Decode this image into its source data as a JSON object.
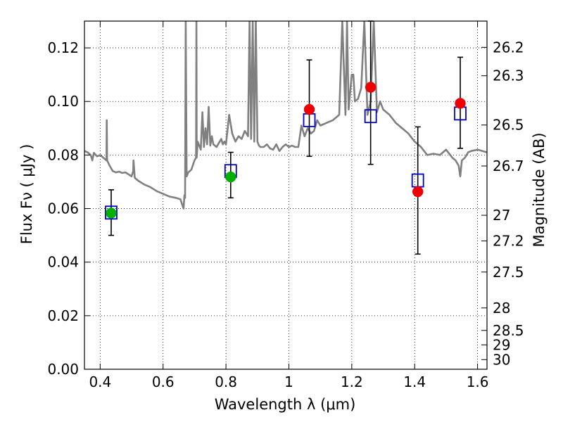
{
  "chart_data": {
    "type": "scatter",
    "title": "",
    "xlabel": "Wavelength  λ (μm)",
    "ylabel": "Flux  Fν  ( μJy )",
    "ylabel_right": "Magnitude (AB)",
    "xlim": [
      0.35,
      1.63
    ],
    "ylim": [
      0.0,
      0.13
    ],
    "grid": true,
    "x_ticks": [
      0.4,
      0.6,
      0.8,
      1.0,
      1.2,
      1.4,
      1.6
    ],
    "x_tick_labels": [
      "0.4",
      "0.6",
      "0.8",
      "1",
      "1.2",
      "1.4",
      "1.6"
    ],
    "y_ticks": [
      0.0,
      0.02,
      0.04,
      0.06,
      0.08,
      0.1,
      0.12
    ],
    "y_tick_labels": [
      "0.00",
      "0.02",
      "0.04",
      "0.06",
      "0.08",
      "0.10",
      "0.12"
    ],
    "right_ticks": [
      {
        "flux": 0.1202,
        "label": "26.2"
      },
      {
        "flux": 0.1096,
        "label": "26.3"
      },
      {
        "flux": 0.0912,
        "label": "26.5"
      },
      {
        "flux": 0.0759,
        "label": "26.7"
      },
      {
        "flux": 0.0575,
        "label": "27"
      },
      {
        "flux": 0.0479,
        "label": "27.2"
      },
      {
        "flux": 0.0363,
        "label": "27.5"
      },
      {
        "flux": 0.0229,
        "label": "28"
      },
      {
        "flux": 0.0145,
        "label": "28.5"
      },
      {
        "flux": 0.0091,
        "label": "29"
      },
      {
        "flux": 0.0036,
        "label": "30"
      }
    ],
    "series": [
      {
        "kind": "line",
        "color": "#808080",
        "x": [
          0.35,
          0.36,
          0.37,
          0.375,
          0.38,
          0.39,
          0.4,
          0.41,
          0.415,
          0.42,
          0.421,
          0.422,
          0.43,
          0.44,
          0.45,
          0.46,
          0.47,
          0.48,
          0.49,
          0.5,
          0.505,
          0.506,
          0.51,
          0.52,
          0.54,
          0.56,
          0.58,
          0.6,
          0.62,
          0.64,
          0.655,
          0.665,
          0.668,
          0.67,
          0.672,
          0.675,
          0.68,
          0.69,
          0.7,
          0.705,
          0.706,
          0.707,
          0.71,
          0.72,
          0.725,
          0.73,
          0.735,
          0.74,
          0.745,
          0.75,
          0.755,
          0.76,
          0.77,
          0.78,
          0.785,
          0.79,
          0.795,
          0.8,
          0.81,
          0.82,
          0.83,
          0.84,
          0.85,
          0.86,
          0.87,
          0.875,
          0.88,
          0.885,
          0.89,
          0.895,
          0.9,
          0.905,
          0.91,
          0.92,
          0.93,
          0.94,
          0.95,
          0.96,
          0.97,
          0.98,
          0.99,
          1.0,
          1.01,
          1.02,
          1.03,
          1.04,
          1.05,
          1.06,
          1.07,
          1.08,
          1.09,
          1.1,
          1.12,
          1.14,
          1.16,
          1.17,
          1.18,
          1.185,
          1.19,
          1.2,
          1.205,
          1.21,
          1.22,
          1.23,
          1.24,
          1.25,
          1.26,
          1.27,
          1.28,
          1.29,
          1.3,
          1.32,
          1.34,
          1.36,
          1.38,
          1.4,
          1.42,
          1.44,
          1.46,
          1.48,
          1.5,
          1.52,
          1.53,
          1.54,
          1.545,
          1.55,
          1.56,
          1.57,
          1.58,
          1.6,
          1.63
        ],
        "y": [
          0.0815,
          0.081,
          0.08,
          0.078,
          0.0808,
          0.0795,
          0.08,
          0.079,
          0.0785,
          0.078,
          0.093,
          0.078,
          0.076,
          0.074,
          0.0735,
          0.0738,
          0.0733,
          0.0735,
          0.0728,
          0.072,
          0.074,
          0.078,
          0.0715,
          0.0705,
          0.069,
          0.068,
          0.0665,
          0.0655,
          0.0645,
          0.064,
          0.0635,
          0.06,
          0.065,
          0.064,
          0.13,
          0.072,
          0.0735,
          0.0745,
          0.078,
          0.079,
          0.13,
          0.079,
          0.085,
          0.082,
          0.096,
          0.083,
          0.09,
          0.084,
          0.098,
          0.0835,
          0.087,
          0.084,
          0.083,
          0.085,
          0.086,
          0.084,
          0.085,
          0.084,
          0.095,
          0.088,
          0.085,
          0.087,
          0.086,
          0.089,
          0.087,
          0.13,
          0.086,
          0.13,
          0.085,
          0.13,
          0.085,
          0.0835,
          0.083,
          0.083,
          0.084,
          0.0825,
          0.082,
          0.084,
          0.0815,
          0.083,
          0.084,
          0.083,
          0.0835,
          0.083,
          0.083,
          0.091,
          0.087,
          0.09,
          0.088,
          0.089,
          0.093,
          0.091,
          0.092,
          0.093,
          0.095,
          0.13,
          0.095,
          0.13,
          0.097,
          0.11,
          0.11,
          0.1,
          0.101,
          0.105,
          0.13,
          0.095,
          0.1,
          0.13,
          0.096,
          0.1,
          0.097,
          0.095,
          0.092,
          0.09,
          0.088,
          0.085,
          0.083,
          0.08,
          0.0805,
          0.08,
          0.082,
          0.079,
          0.078,
          0.076,
          0.072,
          0.078,
          0.079,
          0.081,
          0.0815,
          0.082,
          0.081
        ]
      },
      {
        "kind": "open-square",
        "color": "#0000cc",
        "x": [
          0.435,
          0.815,
          1.065,
          1.26,
          1.41,
          1.545
        ],
        "y": [
          0.0585,
          0.074,
          0.093,
          0.0945,
          0.0705,
          0.0955
        ]
      },
      {
        "kind": "dot",
        "color": "#00b000",
        "x": [
          0.435,
          0.815
        ],
        "y": [
          0.0583,
          0.0718
        ]
      },
      {
        "kind": "dot",
        "color": "#ee0000",
        "x": [
          1.065,
          1.26,
          1.41,
          1.545
        ],
        "y": [
          0.097,
          0.1053,
          0.0663,
          0.0993
        ]
      }
    ],
    "errorbars": [
      {
        "x": 0.435,
        "low": 0.05,
        "high": 0.067
      },
      {
        "x": 0.815,
        "low": 0.064,
        "high": 0.081
      },
      {
        "x": 1.065,
        "low": 0.0795,
        "high": 0.1155
      },
      {
        "x": 1.26,
        "low": 0.0765,
        "high": 0.13
      },
      {
        "x": 1.41,
        "low": 0.043,
        "high": 0.0905
      },
      {
        "x": 1.545,
        "low": 0.0825,
        "high": 0.1165
      }
    ]
  }
}
